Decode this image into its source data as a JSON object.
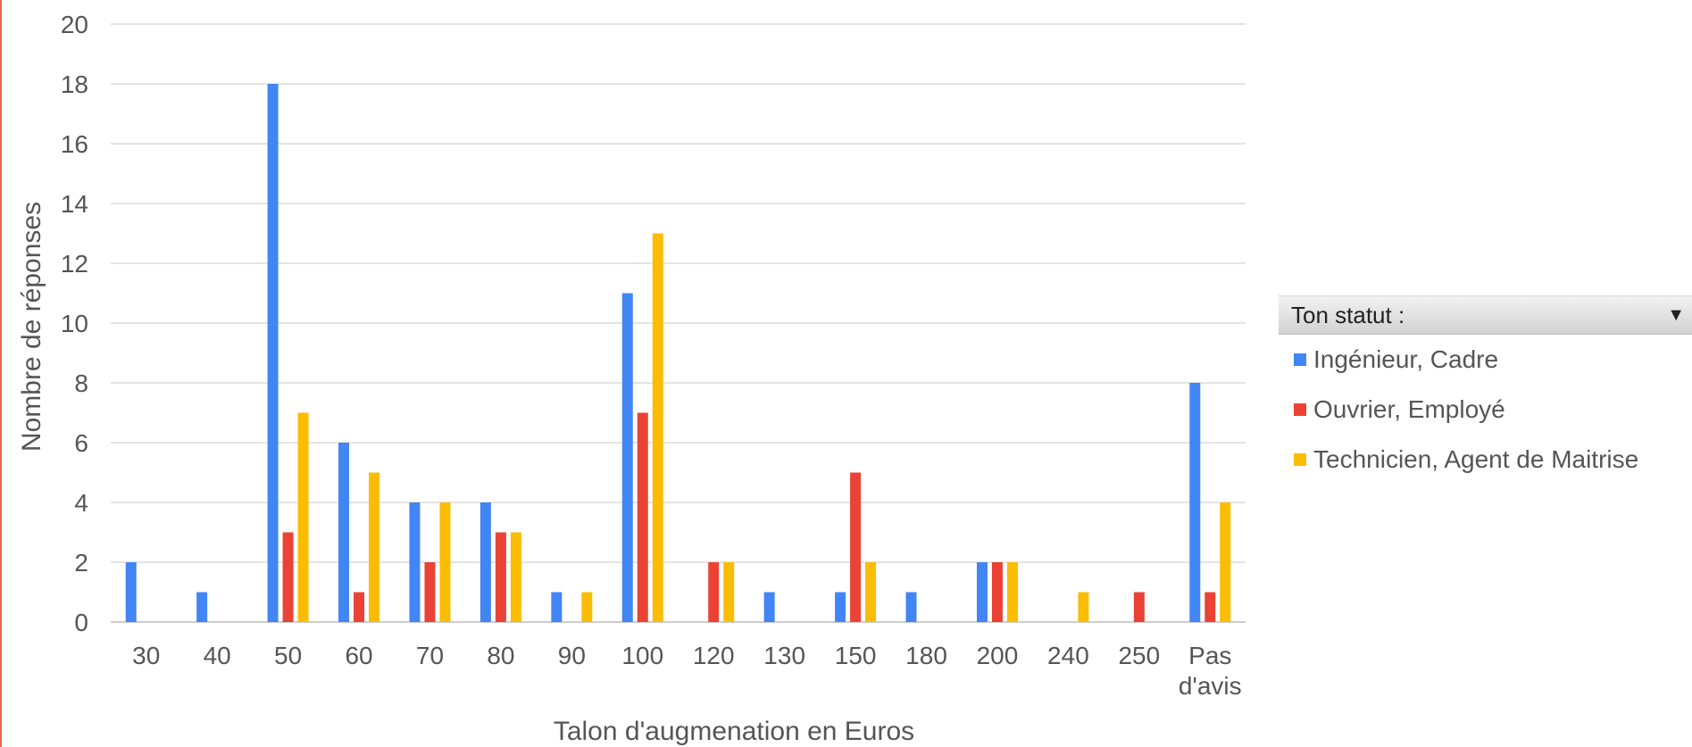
{
  "chart_data": {
    "type": "bar",
    "title": "",
    "xlabel": "Talon d'augmenation en Euros",
    "ylabel": "Nombre de réponses",
    "ylim": [
      0,
      20
    ],
    "y_ticks": [
      "0",
      "2",
      "4",
      "6",
      "8",
      "10",
      "12",
      "14",
      "16",
      "18",
      "20"
    ],
    "grid": true,
    "legend_position": "right",
    "categories": [
      "30",
      "40",
      "50",
      "60",
      "70",
      "80",
      "90",
      "100",
      "120",
      "130",
      "150",
      "180",
      "200",
      "240",
      "250",
      "Pas d'avis"
    ],
    "category_lines": [
      [
        "30"
      ],
      [
        "40"
      ],
      [
        "50"
      ],
      [
        "60"
      ],
      [
        "70"
      ],
      [
        "80"
      ],
      [
        "90"
      ],
      [
        "100"
      ],
      [
        "120"
      ],
      [
        "130"
      ],
      [
        "150"
      ],
      [
        "180"
      ],
      [
        "200"
      ],
      [
        "240"
      ],
      [
        "250"
      ],
      [
        "Pas",
        "d'avis"
      ]
    ],
    "series": [
      {
        "name": "Ingénieur, Cadre",
        "color": "#4285f4",
        "values": [
          2,
          1,
          18,
          6,
          4,
          4,
          1,
          11,
          0,
          1,
          1,
          1,
          2,
          0,
          0,
          8
        ]
      },
      {
        "name": "Ouvrier, Employé",
        "color": "#ea4335",
        "values": [
          0,
          0,
          3,
          1,
          2,
          3,
          0,
          7,
          2,
          0,
          5,
          0,
          2,
          0,
          1,
          1
        ]
      },
      {
        "name": "Technicien, Agent de Maitrise",
        "color": "#fbbc04",
        "values": [
          0,
          0,
          7,
          5,
          4,
          3,
          1,
          13,
          2,
          0,
          2,
          0,
          2,
          1,
          0,
          4
        ]
      }
    ]
  },
  "legend": {
    "title": "Ton statut :",
    "dropdown_icon": "dropdown-arrow-icon",
    "items": [
      {
        "label": "Ingénieur, Cadre",
        "color": "#4285f4"
      },
      {
        "label": "Ouvrier, Employé",
        "color": "#ea4335"
      },
      {
        "label": "Technicien, Agent de Maitrise",
        "color": "#fbbc04"
      }
    ]
  }
}
